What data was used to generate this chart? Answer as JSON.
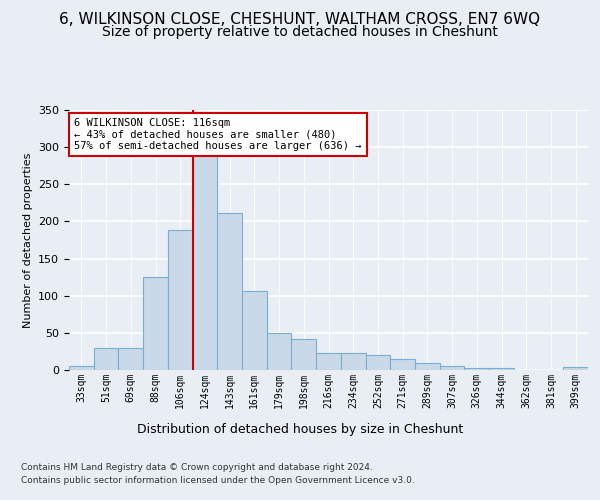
{
  "title": "6, WILKINSON CLOSE, CHESHUNT, WALTHAM CROSS, EN7 6WQ",
  "subtitle": "Size of property relative to detached houses in Cheshunt",
  "xlabel_bottom": "Distribution of detached houses by size in Cheshunt",
  "ylabel": "Number of detached properties",
  "footer_line1": "Contains HM Land Registry data © Crown copyright and database right 2024.",
  "footer_line2": "Contains public sector information licensed under the Open Government Licence v3.0.",
  "property_label": "6 WILKINSON CLOSE: 116sqm",
  "annotation_line1": "← 43% of detached houses are smaller (480)",
  "annotation_line2": "57% of semi-detached houses are larger (636) →",
  "bar_color": "#c9d9e8",
  "bar_edge_color": "#7aafd4",
  "vline_color": "#cc0000",
  "bg_color": "#e8eef4",
  "plot_bg_color": "#e8eef4",
  "grid_color": "#ffffff",
  "annotation_box_color": "#ffffff",
  "annotation_box_edge": "#cc0000",
  "categories": [
    "33sqm",
    "51sqm",
    "69sqm",
    "88sqm",
    "106sqm",
    "124sqm",
    "143sqm",
    "161sqm",
    "179sqm",
    "198sqm",
    "216sqm",
    "234sqm",
    "252sqm",
    "271sqm",
    "289sqm",
    "307sqm",
    "326sqm",
    "344sqm",
    "362sqm",
    "381sqm",
    "399sqm"
  ],
  "values": [
    5,
    30,
    30,
    125,
    188,
    293,
    212,
    107,
    50,
    42,
    23,
    23,
    20,
    15,
    10,
    5,
    3,
    3,
    0,
    0,
    4
  ],
  "ylim": [
    0,
    350
  ],
  "vline_x": 4.5,
  "title_fontsize": 11,
  "subtitle_fontsize": 10
}
